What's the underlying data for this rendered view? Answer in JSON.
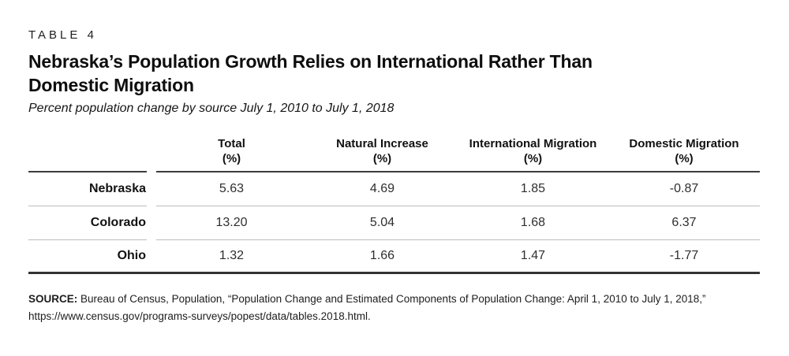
{
  "figure": {
    "eyebrow": "TABLE 4",
    "title_line1": "Nebraska’s Population Growth Relies on International Rather Than",
    "title_line2": "Domestic Migration",
    "subtitle": "Percent population change by source July 1, 2010 to July 1, 2018"
  },
  "columns": [
    {
      "label": "Total",
      "unit": "(%)"
    },
    {
      "label": "Natural Increase",
      "unit": "(%)"
    },
    {
      "label": "International Migration",
      "unit": "(%)"
    },
    {
      "label": "Domestic Migration",
      "unit": "(%)"
    }
  ],
  "rows": [
    {
      "label": "Nebraska",
      "values": [
        "5.63",
        "4.69",
        "1.85",
        "-0.87"
      ]
    },
    {
      "label": "Colorado",
      "values": [
        "13.20",
        "5.04",
        "1.68",
        "6.37"
      ]
    },
    {
      "label": "Ohio",
      "values": [
        "1.32",
        "1.66",
        "1.47",
        "-1.77"
      ]
    }
  ],
  "source": {
    "prefix": "SOURCE:",
    "text": " Bureau of Census, Population, “Population Change and Estimated Components of Population Change: April 1, 2010 to July 1, 2018,”",
    "url": "https://www.census.gov/programs-surveys/popest/data/tables.2018.html."
  },
  "colors": {
    "heavy_rule": "#333333",
    "header_rule": "#3c3c3c",
    "row_separator": "#bcbcbc",
    "text": "#111111"
  },
  "chart_data": {
    "type": "table",
    "table_label": "TABLE 4",
    "title": "Nebraska's Population Growth Relies on International Rather Than Domestic Migration",
    "subtitle": "Percent population change by source July 1, 2010 to July 1, 2018",
    "columns": [
      "Total (%)",
      "Natural Increase (%)",
      "International Migration (%)",
      "Domestic Migration (%)"
    ],
    "rows": [
      {
        "label": "Nebraska",
        "values": [
          5.63,
          4.69,
          1.85,
          -0.87
        ]
      },
      {
        "label": "Colorado",
        "values": [
          13.2,
          5.04,
          1.68,
          6.37
        ]
      },
      {
        "label": "Ohio",
        "values": [
          1.32,
          1.66,
          1.47,
          -1.77
        ]
      }
    ],
    "source": "SOURCE: Bureau of Census, Population, “Population Change and Estimated Components of Population Change: April 1, 2010 to July 1, 2018,” https://www.census.gov/programs-surveys/popest/data/tables.2018.html."
  }
}
